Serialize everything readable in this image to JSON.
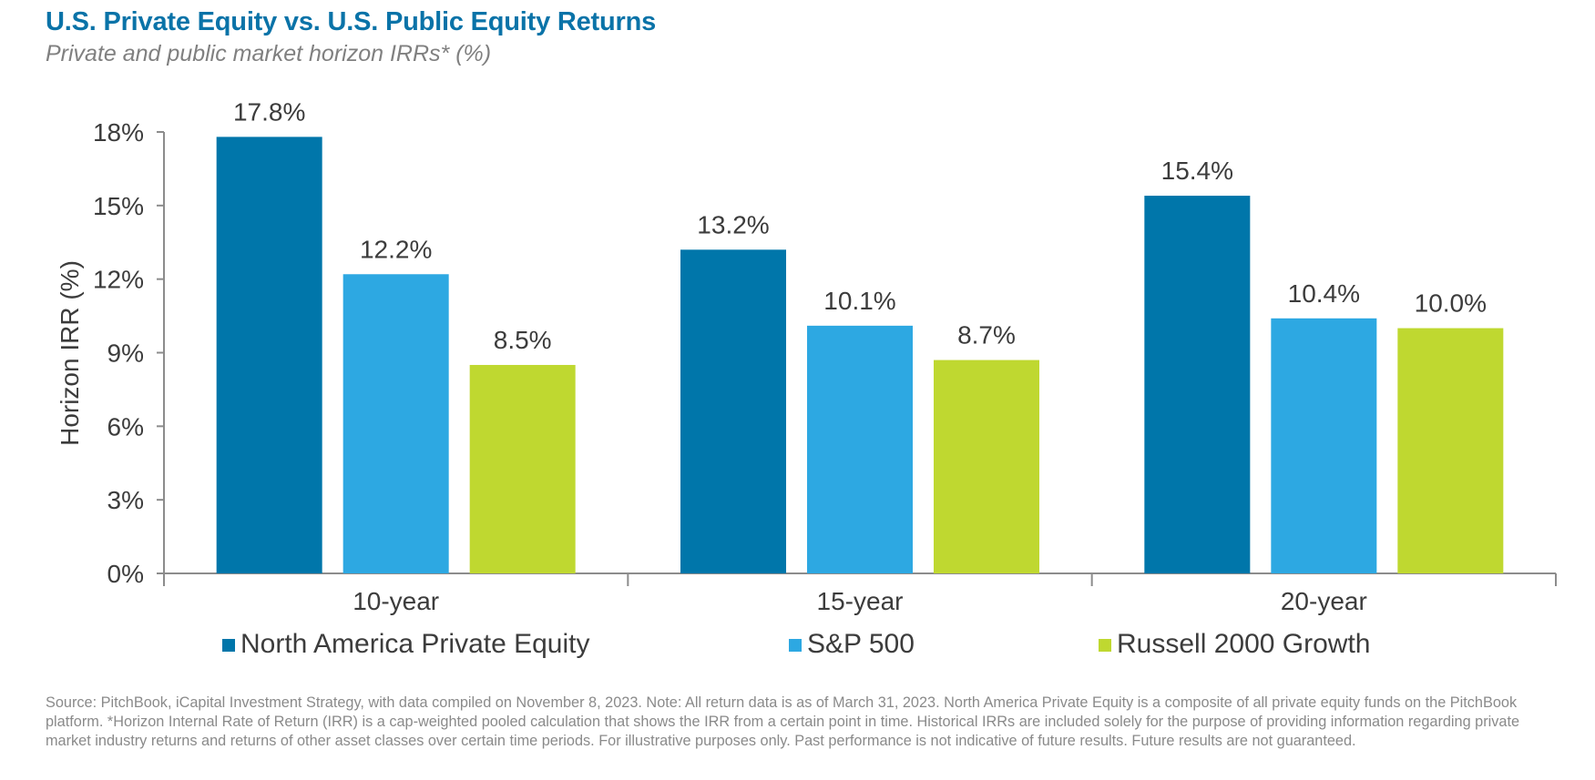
{
  "chart_data": {
    "type": "bar",
    "title": "U.S. Private Equity vs. U.S. Public Equity Returns",
    "subtitle": "Private and public market horizon IRRs* (%)",
    "ylabel": "Horizon IRR (%)",
    "xlabel": "",
    "ylim": [
      0,
      18
    ],
    "yticks": [
      0,
      3,
      6,
      9,
      12,
      15,
      18
    ],
    "ytick_labels": [
      "0%",
      "3%",
      "6%",
      "9%",
      "12%",
      "15%",
      "18%"
    ],
    "categories": [
      "10-year",
      "15-year",
      "20-year"
    ],
    "series": [
      {
        "name": "North America Private Equity",
        "color": "#0076aa",
        "values": [
          17.8,
          13.2,
          15.4
        ],
        "labels": [
          "17.8%",
          "13.2%",
          "15.4%"
        ]
      },
      {
        "name": "S&P 500",
        "color": "#2da8e2",
        "values": [
          12.2,
          10.1,
          10.4
        ],
        "labels": [
          "12.2%",
          "10.1%",
          "10.4%"
        ]
      },
      {
        "name": "Russell 2000 Growth",
        "color": "#bfd830",
        "values": [
          8.5,
          8.7,
          10.0
        ],
        "labels": [
          "8.5%",
          "8.7%",
          "10.0%"
        ]
      }
    ],
    "legend": "bottom",
    "grid": false
  },
  "footer": {
    "source": "Source: PitchBook, iCapital Investment Strategy, with data compiled on November 8, 2023. Note: All  return data is as of March 31, 2023. North America Private Equity is a composite of all private equity funds on the PitchBook platform. *Horizon Internal Rate of Return (IRR) is a cap-weighted pooled calculation that shows the IRR from a certain point in time. Historical IRRs are included solely for the purpose of providing information regarding private market industry returns and returns of other asset classes over certain time periods. For illustrative purposes only. Past performance is not indicative of future results. Future results are not guaranteed."
  }
}
